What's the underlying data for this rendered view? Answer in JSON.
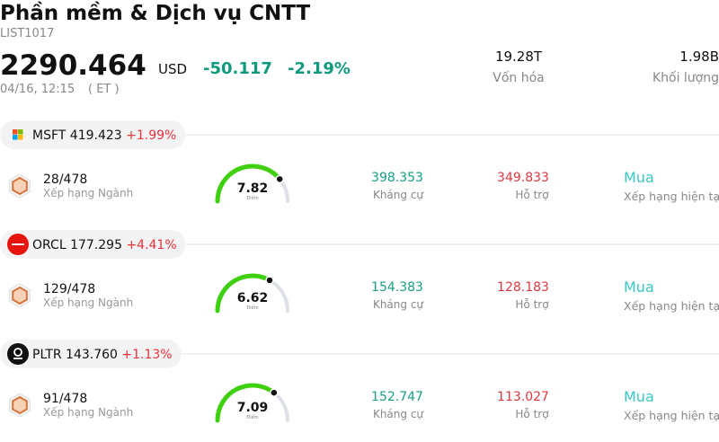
{
  "header": {
    "title": "Phần mềm & Dịch vụ CNTT",
    "code": "LIST1017",
    "price": "2290.464",
    "currency": "USD",
    "change": "-50.117",
    "change_pct": "-2.19%",
    "time": "04/16, 12:15",
    "timezone": "( ET )",
    "stats": [
      {
        "value": "19.28T",
        "label": "Vốn hóa"
      },
      {
        "value": "1.98B",
        "label": "Khối lượng"
      }
    ]
  },
  "gauge_range": [
    0,
    10
  ],
  "stocks": [
    {
      "ticker": "MSFT",
      "price": "419.423",
      "change": "+1.99%",
      "rank": "28/478",
      "rank_label": "Xếp hạng Ngành",
      "score": 7.82,
      "score_label": "Điểm",
      "resistance": "398.353",
      "resistance_label": "Kháng cự",
      "support": "349.833",
      "support_label": "Hỗ trợ",
      "rating": "Mua",
      "rating_label": "Xếp hạng hiện tại"
    },
    {
      "ticker": "ORCL",
      "price": "177.295",
      "change": "+4.41%",
      "rank": "129/478",
      "rank_label": "Xếp hạng Ngành",
      "score": 6.62,
      "score_label": "Điểm",
      "resistance": "154.383",
      "resistance_label": "Kháng cự",
      "support": "128.183",
      "support_label": "Hỗ trợ",
      "rating": "Mua",
      "rating_label": "Xếp hạng hiện tại"
    },
    {
      "ticker": "PLTR",
      "price": "143.760",
      "change": "+1.13%",
      "rank": "91/478",
      "rank_label": "Xếp hạng Ngành",
      "score": 7.09,
      "score_label": "Điểm",
      "resistance": "152.747",
      "resistance_label": "Kháng cự",
      "support": "113.027",
      "support_label": "Hỗ trợ",
      "rating": "Mua",
      "rating_label": "Xếp hạng hiện tại"
    }
  ]
}
